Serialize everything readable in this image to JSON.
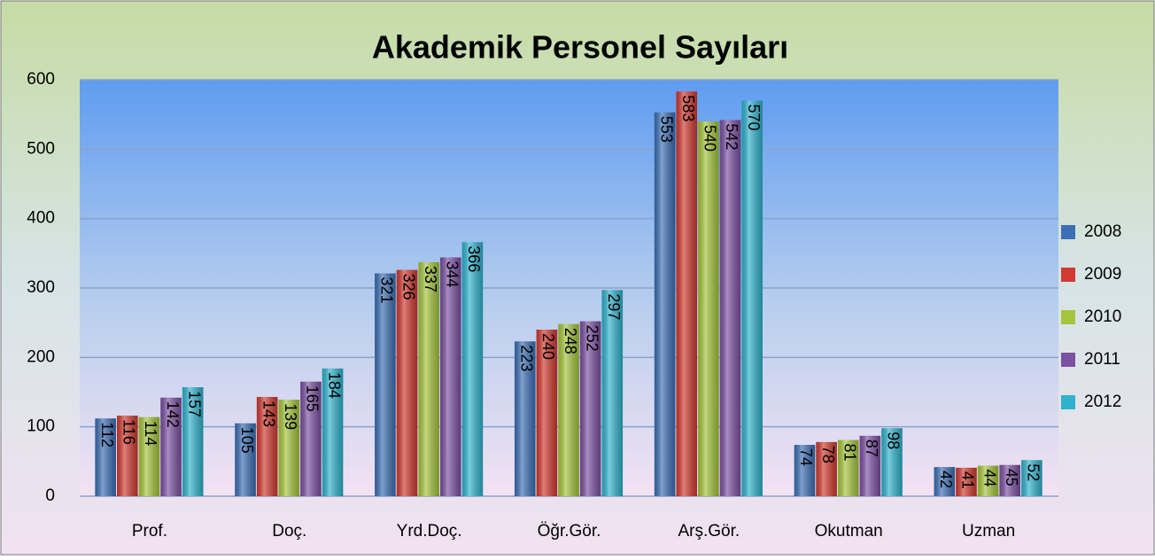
{
  "chart_data": {
    "type": "bar",
    "title": "Akademik Personel Sayıları",
    "categories": [
      "Prof.",
      "Doç.",
      "Yrd.Doç.",
      "Öğr.Gör.",
      "Arş.Gör.",
      "Okutman",
      "Uzman"
    ],
    "series": [
      {
        "name": "2008",
        "color": "#3d6fb5",
        "values": [
          112,
          105,
          321,
          223,
          553,
          74,
          42
        ]
      },
      {
        "name": "2009",
        "color": "#d03a30",
        "values": [
          116,
          143,
          326,
          240,
          583,
          78,
          41
        ]
      },
      {
        "name": "2010",
        "color": "#a5c53c",
        "values": [
          114,
          139,
          337,
          248,
          540,
          81,
          44
        ]
      },
      {
        "name": "2011",
        "color": "#7c50a2",
        "values": [
          142,
          165,
          344,
          252,
          542,
          87,
          45
        ]
      },
      {
        "name": "2012",
        "color": "#30b2cc",
        "values": [
          157,
          184,
          366,
          297,
          570,
          98,
          52
        ]
      }
    ],
    "ylim": [
      0,
      600
    ],
    "yticks": [
      0,
      100,
      200,
      300,
      400,
      500,
      600
    ],
    "grid": true,
    "legend": "right"
  }
}
